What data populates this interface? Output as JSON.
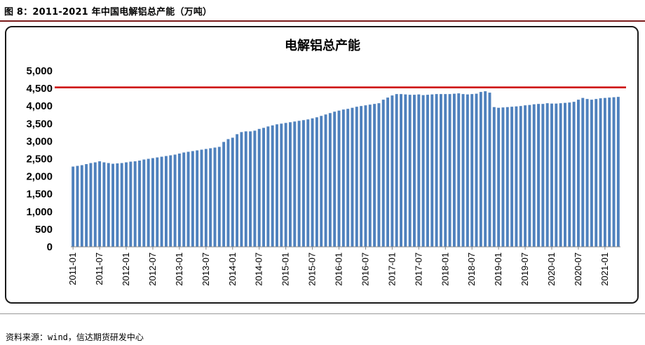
{
  "figure_title": "图 8：2011-2021 年中国电解铝总产能（万吨）",
  "source": "资料来源：wind，信达期货研发中心",
  "colors": {
    "bar": "#4f81bd",
    "line": "#cc0000",
    "frame": "#1a1a1a"
  },
  "chart_data": {
    "type": "bar",
    "title": "电解铝总产能",
    "xlabel": "",
    "ylabel": "",
    "ylim": [
      0,
      5000
    ],
    "yticks": [
      "0",
      "500",
      "1,000",
      "1,500",
      "2,000",
      "2,500",
      "3,000",
      "3,500",
      "4,000",
      "4,500",
      "5,000"
    ],
    "xtick_labels": [
      "2011-01",
      "2011-07",
      "2012-01",
      "2012-07",
      "2013-01",
      "2013-07",
      "2014-01",
      "2014-07",
      "2015-01",
      "2015-07",
      "2016-01",
      "2016-07",
      "2017-01",
      "2017-07",
      "2018-01",
      "2018-07",
      "2019-01",
      "2019-07",
      "2020-01",
      "2020-07",
      "2021-01"
    ],
    "start_month": "2011-01",
    "values": [
      2280,
      2300,
      2320,
      2350,
      2380,
      2400,
      2430,
      2400,
      2380,
      2360,
      2370,
      2380,
      2400,
      2420,
      2430,
      2450,
      2480,
      2500,
      2520,
      2540,
      2560,
      2580,
      2600,
      2620,
      2650,
      2680,
      2700,
      2720,
      2740,
      2760,
      2780,
      2800,
      2820,
      2840,
      2980,
      3060,
      3100,
      3200,
      3260,
      3280,
      3280,
      3300,
      3350,
      3380,
      3420,
      3450,
      3480,
      3500,
      3520,
      3540,
      3560,
      3580,
      3600,
      3620,
      3650,
      3680,
      3720,
      3760,
      3800,
      3840,
      3870,
      3900,
      3920,
      3950,
      3980,
      4000,
      4020,
      4040,
      4060,
      4080,
      4180,
      4240,
      4300,
      4340,
      4340,
      4330,
      4320,
      4320,
      4330,
      4310,
      4320,
      4330,
      4340,
      4340,
      4340,
      4340,
      4350,
      4360,
      4340,
      4330,
      4340,
      4350,
      4400,
      4420,
      4380,
      3970,
      3950,
      3960,
      3970,
      3980,
      3990,
      4000,
      4020,
      4030,
      4050,
      4060,
      4060,
      4080,
      4070,
      4070,
      4080,
      4090,
      4100,
      4120,
      4180,
      4230,
      4200,
      4180,
      4200,
      4220,
      4230,
      4240,
      4250,
      4260
    ],
    "reference_line": {
      "value": 4530,
      "name": ""
    }
  }
}
